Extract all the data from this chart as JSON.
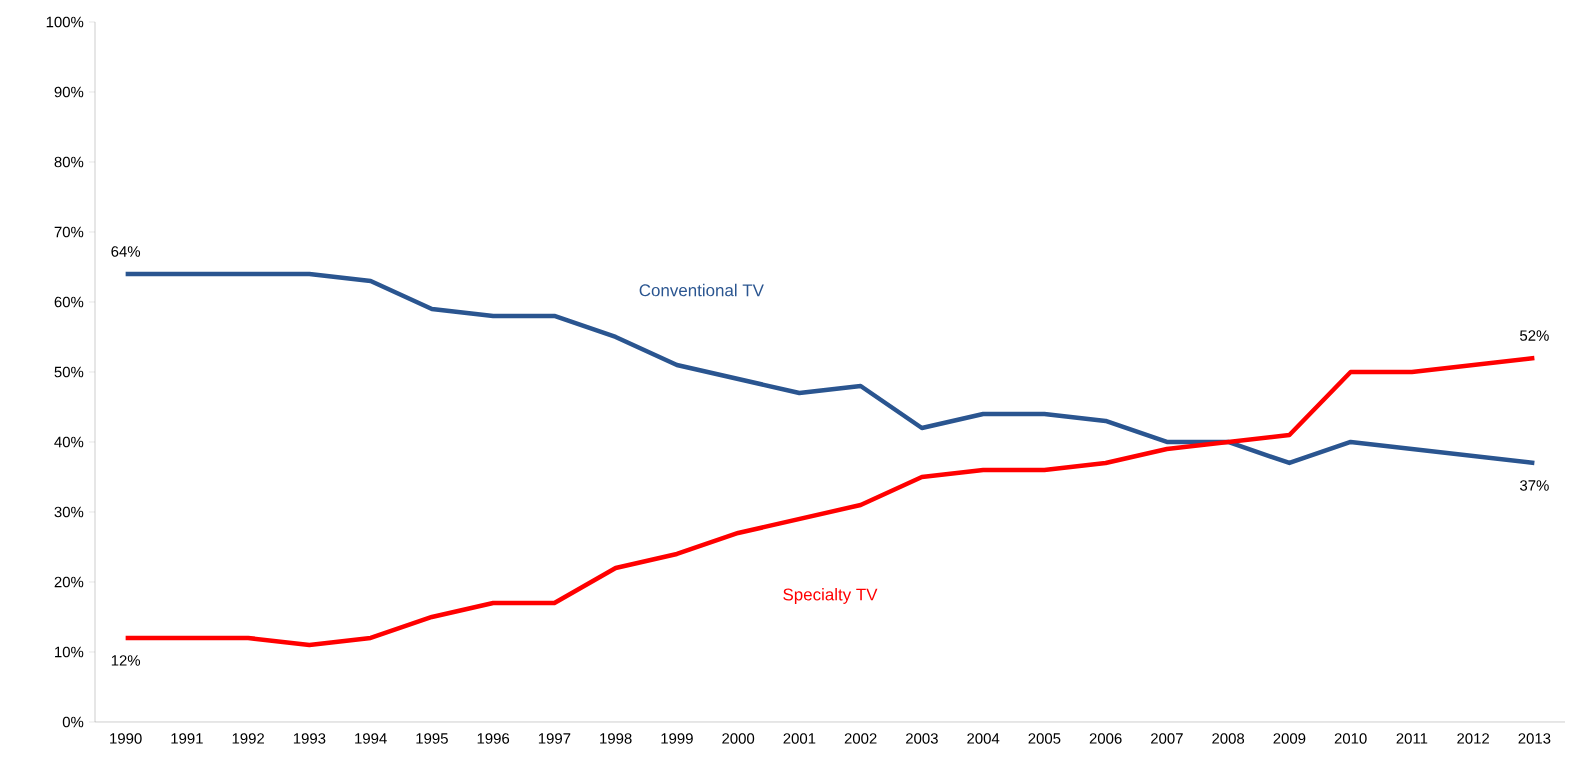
{
  "chart_data": {
    "type": "line",
    "categories": [
      "1990",
      "1991",
      "1992",
      "1993",
      "1994",
      "1995",
      "1996",
      "1997",
      "1998",
      "1999",
      "2000",
      "2001",
      "2002",
      "2003",
      "2004",
      "2005",
      "2006",
      "2007",
      "2008",
      "2009",
      "2010",
      "2011",
      "2012",
      "2013"
    ],
    "series": [
      {
        "name": "Conventional TV",
        "color": "#2a5590",
        "values": [
          64,
          64,
          64,
          64,
          63,
          59,
          58,
          58,
          55,
          51,
          49,
          47,
          48,
          42,
          44,
          44,
          43,
          40,
          40,
          37,
          40,
          39,
          38,
          37
        ]
      },
      {
        "name": "Specialty TV",
        "color": "#ff0000",
        "values": [
          12,
          12,
          12,
          11,
          12,
          15,
          17,
          17,
          22,
          24,
          27,
          29,
          31,
          35,
          36,
          36,
          37,
          39,
          40,
          41,
          50,
          50,
          51,
          52
        ]
      }
    ],
    "ylim": [
      0,
      100
    ],
    "yticks": [
      {
        "value": 0,
        "label": "0%"
      },
      {
        "value": 10,
        "label": "10%"
      },
      {
        "value": 20,
        "label": "20%"
      },
      {
        "value": 30,
        "label": "30%"
      },
      {
        "value": 40,
        "label": "40%"
      },
      {
        "value": 50,
        "label": "50%"
      },
      {
        "value": 60,
        "label": "60%"
      },
      {
        "value": 70,
        "label": "70%"
      },
      {
        "value": 80,
        "label": "80%"
      },
      {
        "value": 90,
        "label": "90%"
      },
      {
        "value": 100,
        "label": "100%"
      }
    ],
    "annotations": [
      {
        "text": "64%",
        "x": "1990",
        "y": 64
      },
      {
        "text": "12%",
        "x": "1990",
        "y": 12
      },
      {
        "text": "52%",
        "x": "2013",
        "y": 52
      },
      {
        "text": "37%",
        "x": "2013",
        "y": 37
      }
    ],
    "grid": false,
    "legend": false,
    "marker": "none",
    "line_style": "solid"
  }
}
